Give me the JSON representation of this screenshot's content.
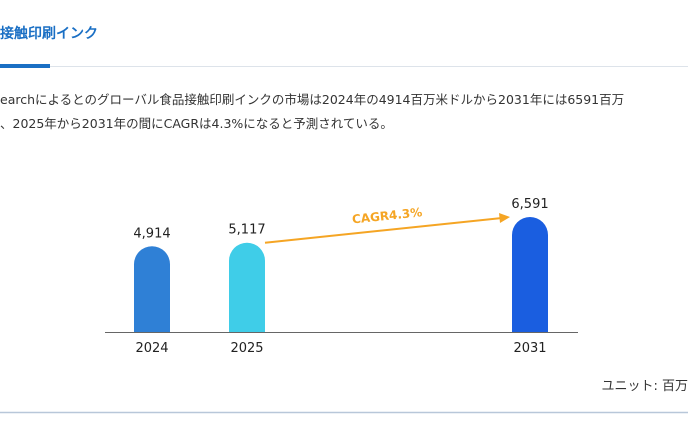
{
  "header": {
    "title": "接触印刷インク"
  },
  "paragraph": [
    "earchによるとのグローバル食品接触印刷インクの市場は2024年の4914百万米ドルから2031年には6591百万",
    "、2025年から2031年の間にCAGRは4.3%になると予測されている。"
  ],
  "chart_data": {
    "type": "bar",
    "categories": [
      "2024",
      "2025",
      "2031"
    ],
    "values": [
      4914,
      5117,
      6591
    ],
    "value_labels": [
      "4,914",
      "5,117",
      "6,591"
    ],
    "colors": [
      "#2f80d6",
      "#3fcde8",
      "#1a5ee0"
    ],
    "annotation": "CAGR4.3%",
    "annotation_color": "#f5a524",
    "unit_label": "ユニット: 百万"
  }
}
